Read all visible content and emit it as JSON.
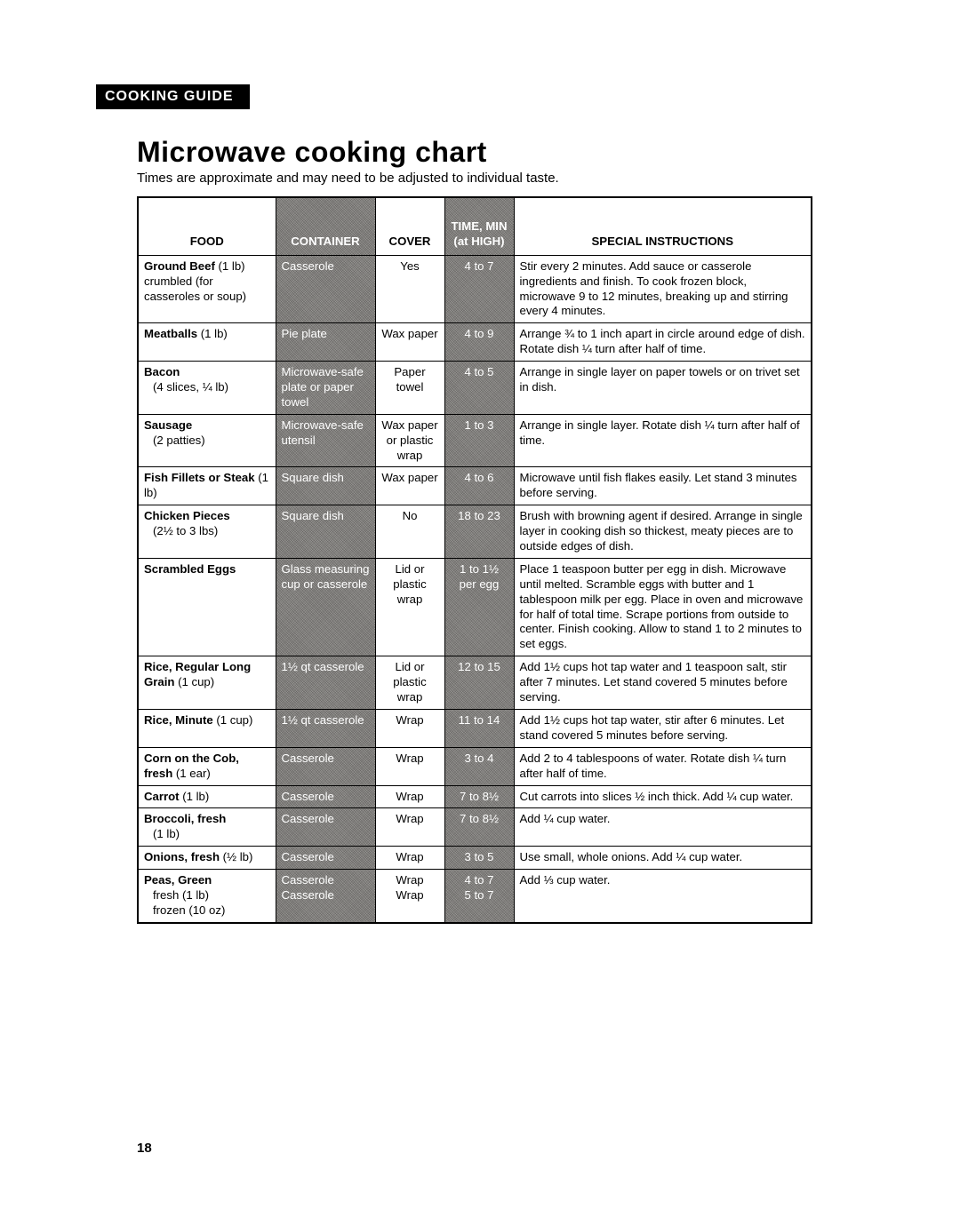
{
  "section_tab": "COOKING GUIDE",
  "title": "Microwave cooking chart",
  "subtitle": "Times are approximate and may need to be adjusted to individual taste.",
  "page_number": "18",
  "headers": {
    "food": "FOOD",
    "container": "CONTAINER",
    "cover": "COVER",
    "time": "TIME, MIN (at HIGH)",
    "instructions": "SPECIAL INSTRUCTIONS"
  },
  "rows": [
    {
      "food_bold": "Ground Beef",
      "food_rest": " (1 lb) crumbled (for casseroles or soup)",
      "container": "Casserole",
      "cover": "Yes",
      "time": "4 to 7",
      "inst": "Stir every 2 minutes. Add sauce or casserole ingredients and finish. To cook frozen block, microwave 9 to 12 minutes, breaking up and stirring every 4 minutes."
    },
    {
      "food_bold": "Meatballs",
      "food_rest": " (1 lb)",
      "container": "Pie plate",
      "cover": "Wax paper",
      "time": "4 to 9",
      "inst": "Arrange ¾ to 1 inch apart in circle around edge of dish. Rotate dish ¼ turn after half of time."
    },
    {
      "food_bold": "Bacon",
      "food_sub": "(4 slices, ¼ lb)",
      "container": "Microwave-safe plate or paper towel",
      "cover": "Paper towel",
      "time": "4 to 5",
      "inst": "Arrange in single layer on paper towels or on trivet set in dish."
    },
    {
      "food_bold": "Sausage",
      "food_sub": "(2 patties)",
      "container": "Microwave-safe utensil",
      "cover": "Wax paper or plastic wrap",
      "time": "1 to 3",
      "inst": "Arrange in single layer. Rotate dish ¼ turn after half of time."
    },
    {
      "food_bold": "Fish Fillets or Steak",
      "food_rest": " (1 lb)",
      "container": "Square dish",
      "cover": "Wax paper",
      "time": "4 to 6",
      "inst": "Microwave until fish flakes easily. Let stand 3 minutes before serving."
    },
    {
      "food_bold": "Chicken Pieces",
      "food_sub": "(2½ to 3 lbs)",
      "container": "Square dish",
      "cover": "No",
      "time": "18 to 23",
      "inst": "Brush with browning agent if desired. Arrange in single layer in cooking dish so thickest, meaty pieces are to outside edges of dish."
    },
    {
      "food_bold": "Scrambled Eggs",
      "container": "Glass measuring cup or casserole",
      "cover": "Lid or plastic wrap",
      "time": "1 to 1½ per egg",
      "inst": "Place 1 teaspoon butter per egg in dish. Microwave until melted. Scramble eggs with butter and 1 tablespoon milk per egg. Place in oven and microwave for half of total time. Scrape portions from outside to center. Finish cooking. Allow to stand 1 to 2 minutes to set eggs."
    },
    {
      "food_bold": "Rice, Regular Long Grain",
      "food_rest": " (1 cup)",
      "container": "1½ qt casserole",
      "cover": "Lid or plastic wrap",
      "time": "12 to 15",
      "inst": "Add 1½ cups hot tap water and 1 teaspoon salt, stir after 7 minutes. Let stand covered 5 minutes before serving."
    },
    {
      "food_bold": "Rice, Minute",
      "food_rest": " (1 cup)",
      "container": "1½ qt casserole",
      "cover": "Wrap",
      "time": "11 to 14",
      "inst": "Add 1½ cups hot tap water, stir after 6 minutes. Let stand covered 5 minutes before serving."
    },
    {
      "food_bold": "Corn on the Cob, fresh",
      "food_rest": " (1 ear)",
      "container": "Casserole",
      "cover": "Wrap",
      "time": "3 to 4",
      "inst": "Add 2 to 4 tablespoons of water. Rotate dish ¼ turn after half of time."
    },
    {
      "food_bold": "Carrot",
      "food_rest": " (1 lb)",
      "container": "Casserole",
      "cover": "Wrap",
      "time": "7 to 8½",
      "inst": "Cut carrots into slices ½ inch thick. Add ¼ cup water."
    },
    {
      "food_bold": "Broccoli, fresh",
      "food_sub": "(1 lb)",
      "container": "Casserole",
      "cover": "Wrap",
      "time": "7 to 8½",
      "inst": "Add ¼ cup water."
    },
    {
      "food_bold": "Onions, fresh",
      "food_rest": " (½ lb)",
      "container": "Casserole",
      "cover": "Wrap",
      "time": "3 to 5",
      "inst": "Use small, whole onions. Add ¼ cup water."
    },
    {
      "food_bold": "Peas, Green",
      "food_sub": "fresh (1 lb)",
      "food_sub2": "frozen (10 oz)",
      "container": "Casserole",
      "container2": "Casserole",
      "cover": "Wrap",
      "cover2": "Wrap",
      "time": "4 to 7",
      "time2": "5 to 7",
      "inst": "Add ⅓ cup water."
    }
  ]
}
